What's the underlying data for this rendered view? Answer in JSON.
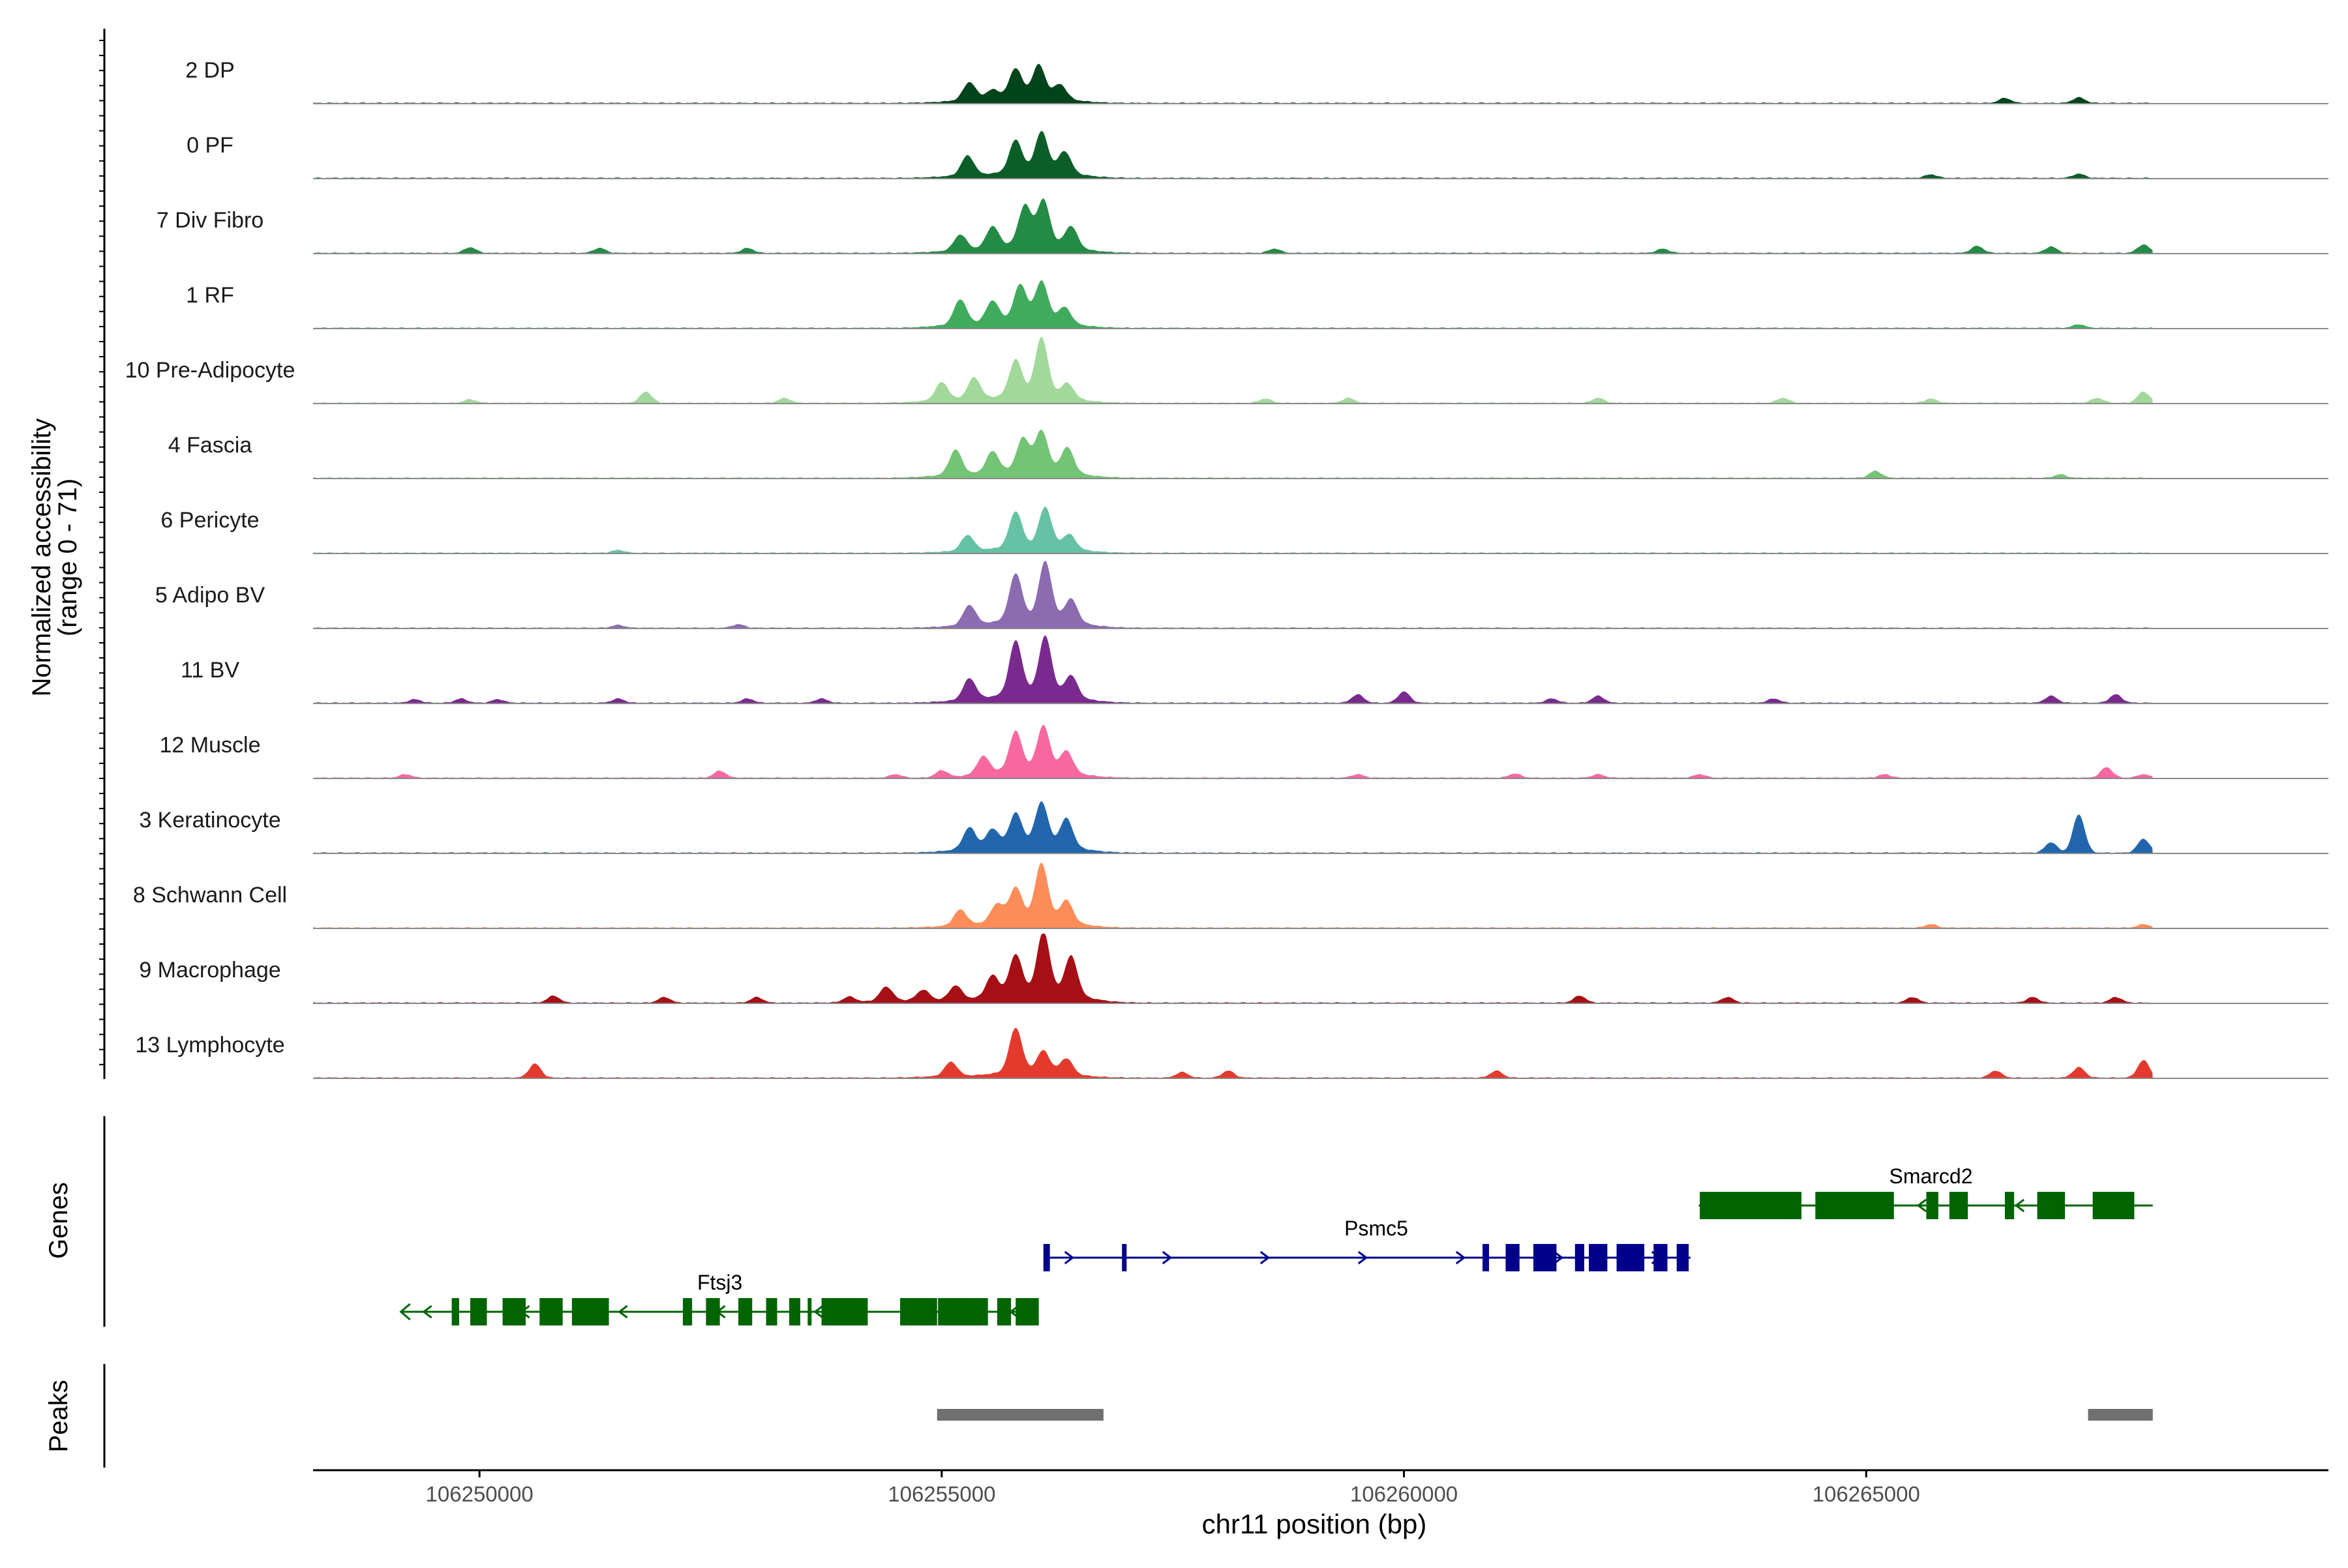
{
  "chart_data": {
    "type": "area",
    "subtype": "genome-browser-coverage",
    "xlabel": "chr11 position (bp)",
    "x_range": [
      106248200,
      106270000
    ],
    "x_ticks": [
      106250000,
      106255000,
      106260000,
      106265000
    ],
    "x_tick_labels": [
      "106250000",
      "106255000",
      "106260000",
      "106265000"
    ],
    "y_title_line1": "Normalized accessibility",
    "y_title_line2": "(range 0 - 71)",
    "y_range": [
      0,
      71
    ],
    "genes_label": "Genes",
    "peaks_label": "Peaks",
    "data_start": 106248200,
    "data_end": 106268100,
    "tracks": [
      {
        "name": "2 DP",
        "color": "#00441b",
        "peaks": [
          [
            106255300,
            0.25
          ],
          [
            106255550,
            0.12
          ],
          [
            106255800,
            0.4
          ],
          [
            106256050,
            0.45
          ],
          [
            106256280,
            0.2
          ]
        ],
        "small": [
          [
            106266500,
            0.07
          ],
          [
            106267300,
            0.08
          ]
        ]
      },
      {
        "name": "0 PF",
        "color": "#0b5e28",
        "peaks": [
          [
            106255280,
            0.28
          ],
          [
            106255800,
            0.45
          ],
          [
            106256080,
            0.55
          ],
          [
            106256330,
            0.3
          ]
        ],
        "small": [
          [
            106265700,
            0.05
          ],
          [
            106267300,
            0.06
          ]
        ]
      },
      {
        "name": "7 Div Fibro",
        "color": "#238b45",
        "peaks": [
          [
            106255200,
            0.22
          ],
          [
            106255550,
            0.3
          ],
          [
            106255900,
            0.55
          ],
          [
            106256100,
            0.62
          ],
          [
            106256400,
            0.3
          ]
        ],
        "small": [
          [
            106249900,
            0.08
          ],
          [
            106251300,
            0.07
          ],
          [
            106252900,
            0.07
          ],
          [
            106258600,
            0.06
          ],
          [
            106262800,
            0.06
          ],
          [
            106266200,
            0.1
          ],
          [
            106267000,
            0.09
          ],
          [
            106268000,
            0.12
          ]
        ]
      },
      {
        "name": "1 RF",
        "color": "#41ab5d",
        "peaks": [
          [
            106255200,
            0.35
          ],
          [
            106255550,
            0.3
          ],
          [
            106255850,
            0.5
          ],
          [
            106256080,
            0.55
          ],
          [
            106256330,
            0.22
          ]
        ],
        "small": [
          [
            106267300,
            0.05
          ]
        ]
      },
      {
        "name": "10 Pre-Adipocyte",
        "color": "#a1d99b",
        "peaks": [
          [
            106255000,
            0.25
          ],
          [
            106255350,
            0.3
          ],
          [
            106255800,
            0.5
          ],
          [
            106256080,
            0.8
          ],
          [
            106256360,
            0.2
          ]
        ],
        "small": [
          [
            106249900,
            0.05
          ],
          [
            106251800,
            0.16
          ],
          [
            106253300,
            0.07
          ],
          [
            106258500,
            0.06
          ],
          [
            106259400,
            0.07
          ],
          [
            106262100,
            0.07
          ],
          [
            106264100,
            0.07
          ],
          [
            106265700,
            0.06
          ],
          [
            106267500,
            0.07
          ],
          [
            106268000,
            0.16
          ]
        ]
      },
      {
        "name": "4 Fascia",
        "color": "#74c476",
        "peaks": [
          [
            106255150,
            0.35
          ],
          [
            106255550,
            0.3
          ],
          [
            106255880,
            0.45
          ],
          [
            106256080,
            0.55
          ],
          [
            106256360,
            0.35
          ]
        ],
        "small": [
          [
            106265100,
            0.1
          ],
          [
            106267100,
            0.05
          ]
        ]
      },
      {
        "name": "6 Pericyte",
        "color": "#66c2a4",
        "peaks": [
          [
            106255280,
            0.22
          ],
          [
            106255800,
            0.5
          ],
          [
            106256120,
            0.55
          ],
          [
            106256380,
            0.2
          ]
        ],
        "small": [
          [
            106251500,
            0.04
          ]
        ]
      },
      {
        "name": "5 Adipo BV",
        "color": "#8c6bb1",
        "peaks": [
          [
            106255300,
            0.28
          ],
          [
            106255800,
            0.65
          ],
          [
            106256120,
            0.8
          ],
          [
            106256400,
            0.32
          ]
        ],
        "small": [
          [
            106251500,
            0.04
          ],
          [
            106252800,
            0.05
          ]
        ]
      },
      {
        "name": "11 BV",
        "color": "#7a2a8e",
        "peaks": [
          [
            106255300,
            0.3
          ],
          [
            106255800,
            0.75
          ],
          [
            106256120,
            0.8
          ],
          [
            106256400,
            0.3
          ]
        ],
        "small": [
          [
            106249300,
            0.05
          ],
          [
            106249800,
            0.06
          ],
          [
            106250200,
            0.05
          ],
          [
            106251500,
            0.06
          ],
          [
            106252900,
            0.06
          ],
          [
            106253700,
            0.06
          ],
          [
            106260000,
            0.16
          ],
          [
            106259500,
            0.12
          ],
          [
            106261600,
            0.06
          ],
          [
            106262100,
            0.1
          ],
          [
            106264000,
            0.06
          ],
          [
            106267000,
            0.1
          ],
          [
            106267700,
            0.12
          ]
        ]
      },
      {
        "name": "12 Muscle",
        "color": "#f768a1",
        "peaks": [
          [
            106255450,
            0.25
          ],
          [
            106255800,
            0.55
          ],
          [
            106256100,
            0.62
          ],
          [
            106256350,
            0.3
          ]
        ],
        "small": [
          [
            106249200,
            0.05
          ],
          [
            106252600,
            0.1
          ],
          [
            106254500,
            0.05
          ],
          [
            106255000,
            0.1
          ],
          [
            106259500,
            0.05
          ],
          [
            106261200,
            0.06
          ],
          [
            106262100,
            0.05
          ],
          [
            106263200,
            0.05
          ],
          [
            106265200,
            0.05
          ],
          [
            106267600,
            0.15
          ],
          [
            106268000,
            0.05
          ]
        ]
      },
      {
        "name": "3 Keratinocyte",
        "color": "#2166ac",
        "peaks": [
          [
            106255300,
            0.3
          ],
          [
            106255550,
            0.25
          ],
          [
            106255800,
            0.45
          ],
          [
            106256080,
            0.6
          ],
          [
            106256350,
            0.4
          ]
        ],
        "small": [
          [
            106267300,
            0.55
          ],
          [
            106268000,
            0.2
          ],
          [
            106267000,
            0.15
          ]
        ]
      },
      {
        "name": "8 Schwann Cell",
        "color": "#fc8d59",
        "peaks": [
          [
            106255200,
            0.22
          ],
          [
            106255600,
            0.25
          ],
          [
            106255800,
            0.45
          ],
          [
            106256080,
            0.78
          ],
          [
            106256350,
            0.3
          ]
        ],
        "small": [
          [
            106265700,
            0.05
          ],
          [
            106268000,
            0.05
          ]
        ]
      },
      {
        "name": "9 Macrophage",
        "color": "#a50f15",
        "peaks": [
          [
            106254400,
            0.2
          ],
          [
            106254800,
            0.15
          ],
          [
            106255150,
            0.2
          ],
          [
            106255550,
            0.3
          ],
          [
            106255800,
            0.55
          ],
          [
            106256100,
            0.85
          ],
          [
            106256400,
            0.55
          ]
        ],
        "small": [
          [
            106250800,
            0.1
          ],
          [
            106252000,
            0.08
          ],
          [
            106253000,
            0.08
          ],
          [
            106254000,
            0.08
          ],
          [
            106261900,
            0.1
          ],
          [
            106263500,
            0.08
          ],
          [
            106265500,
            0.08
          ],
          [
            106266800,
            0.08
          ],
          [
            106267700,
            0.08
          ]
        ]
      },
      {
        "name": "13 Lymphocyte",
        "color": "#e33a2d",
        "peaks": [
          [
            106255100,
            0.2
          ],
          [
            106255800,
            0.62
          ],
          [
            106256100,
            0.3
          ],
          [
            106256350,
            0.22
          ]
        ],
        "small": [
          [
            106250600,
            0.2
          ],
          [
            106257600,
            0.08
          ],
          [
            106258100,
            0.1
          ],
          [
            106261000,
            0.1
          ],
          [
            106266400,
            0.1
          ],
          [
            106267300,
            0.15
          ],
          [
            106268000,
            0.25
          ]
        ]
      }
    ],
    "genes": [
      {
        "name": "Ftsj3",
        "strand": "-",
        "start": 106249150,
        "end": 106256050,
        "row": 2,
        "color": "#006400",
        "label_pos": 106252600,
        "exons": [
          [
            106249700,
            106249780
          ],
          [
            106249900,
            106250080
          ],
          [
            106250250,
            106250500
          ],
          [
            106250650,
            106250900
          ],
          [
            106251000,
            106251400
          ],
          [
            106252200,
            106252300
          ],
          [
            106252450,
            106252600
          ],
          [
            106252800,
            106252950
          ],
          [
            106253100,
            106253220
          ],
          [
            106253350,
            106253470
          ],
          [
            106253550,
            106253570
          ],
          [
            106253700,
            106254200
          ],
          [
            106254550,
            106254950
          ],
          [
            106254960,
            106255500
          ],
          [
            106255600,
            106255750
          ],
          [
            106255800,
            106256050
          ]
        ]
      },
      {
        "name": "Psmc5",
        "strand": "+",
        "start": 106256100,
        "end": 106263100,
        "row": 1,
        "color": "#00008b",
        "label_pos": 106259700,
        "exons": [
          [
            106256100,
            106256170
          ],
          [
            106256950,
            106257000
          ],
          [
            106260850,
            106260920
          ],
          [
            106261100,
            106261250
          ],
          [
            106261400,
            106261650
          ],
          [
            106261850,
            106261950
          ],
          [
            106262000,
            106262200
          ],
          [
            106262300,
            106262600
          ],
          [
            106262700,
            106262850
          ],
          [
            106262950,
            106263080
          ]
        ]
      },
      {
        "name": "Smarcd2",
        "strand": "-",
        "start": 106263200,
        "end": 106268100,
        "row": 0,
        "color": "#006400",
        "label_pos": 106265700,
        "exons": [
          [
            106263200,
            106264300
          ],
          [
            106264450,
            106265300
          ],
          [
            106265650,
            106265780
          ],
          [
            106265900,
            106266100
          ],
          [
            106266500,
            106266600
          ],
          [
            106266850,
            106267150
          ],
          [
            106267450,
            106267900
          ]
        ]
      }
    ],
    "peaks_regions": [
      [
        106254950,
        106256750
      ],
      [
        106267400,
        106268100
      ]
    ]
  }
}
